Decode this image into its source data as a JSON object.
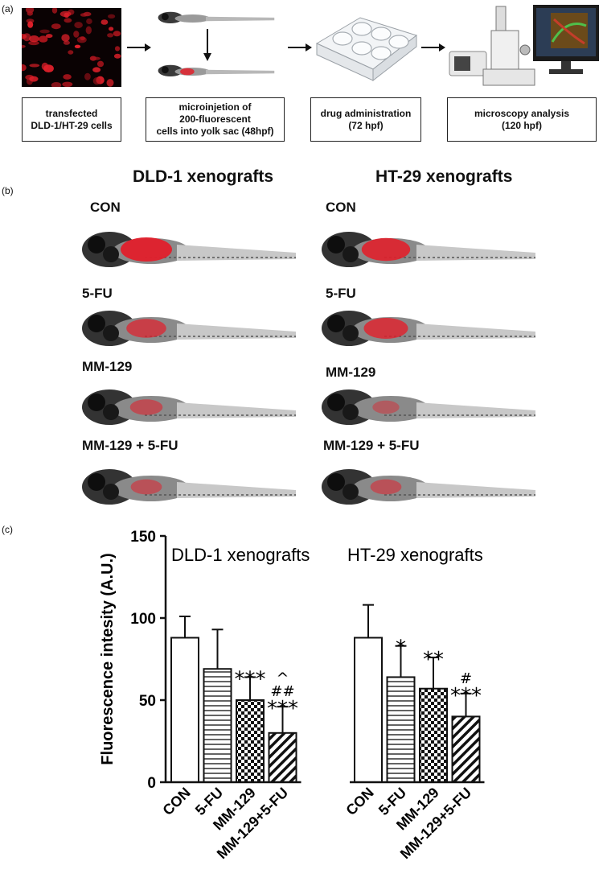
{
  "panel_labels": {
    "a": "(a)",
    "b": "(b)",
    "c": "(c)"
  },
  "workflow": {
    "steps": [
      {
        "label": "transfected\nDLD-1/HT-29 cells"
      },
      {
        "label": "microinjetion of\n200-fluorescent\ncells into yolk sac (48hpf)"
      },
      {
        "label": "drug administration\n(72 hpf)"
      },
      {
        "label": "microscopy analysis\n(120 hpf)"
      }
    ]
  },
  "xenograft_titles": {
    "dld1": "DLD-1 xenografts",
    "ht29": "HT-29 xenografts"
  },
  "conditions": {
    "dld1": [
      "CON",
      "5-FU",
      "MM-129",
      "MM-129 + 5-FU"
    ],
    "ht29": [
      "CON",
      "5-FU",
      "MM-129",
      "MM-129 + 5-FU"
    ]
  },
  "tumor_signal": {
    "dld1": [
      1.0,
      0.6,
      0.35,
      0.3
    ],
    "ht29": [
      0.9,
      0.75,
      0.15,
      0.3
    ]
  },
  "chart_data": {
    "type": "bar",
    "ylabel": "Fluorescence intesity (A.U.)",
    "ylim": [
      0,
      150
    ],
    "yticks": [
      0,
      50,
      100,
      150
    ],
    "groups": [
      {
        "name": "DLD-1 xenografts",
        "categories": [
          "CON",
          "5-FU",
          "MM-129",
          "MM-129+5-FU"
        ],
        "values": [
          88,
          69,
          50,
          30
        ],
        "errors": [
          13,
          24,
          14,
          16
        ],
        "annotations": [
          "",
          "",
          "***",
          "***"
        ],
        "annotations2": [
          "",
          "",
          "",
          "##"
        ],
        "annotations3": [
          "",
          "",
          "",
          "^"
        ]
      },
      {
        "name": "HT-29 xenografts",
        "categories": [
          "CON",
          "5-FU",
          "MM-129",
          "MM-129+5-FU"
        ],
        "values": [
          88,
          64,
          57,
          40
        ],
        "errors": [
          20,
          19,
          19,
          14
        ],
        "annotations": [
          "",
          "*",
          "**",
          "***"
        ],
        "annotations2": [
          "",
          "",
          "",
          "#"
        ],
        "annotations3": [
          "",
          "",
          "",
          ""
        ]
      }
    ],
    "patterns": [
      "open",
      "horizontal-lines",
      "checker",
      "diagonal-lines"
    ]
  }
}
